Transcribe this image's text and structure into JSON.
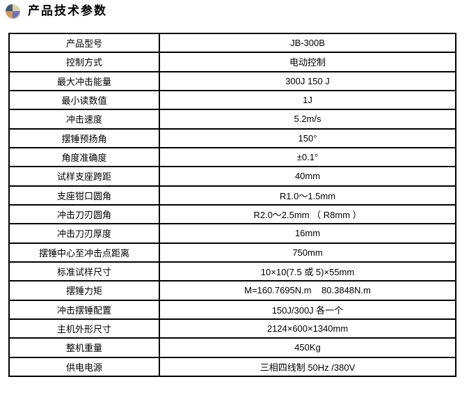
{
  "header": {
    "title": "产品技术参数",
    "icon": "pie-chart-icon",
    "icon_colors": {
      "top_left": "#475972",
      "top_right": "#d8d2a5",
      "bottom_left": "#d09a5e",
      "bottom_right": "#6d74b4"
    }
  },
  "table": {
    "rows": [
      {
        "label": "产品型号",
        "value": "JB-300B"
      },
      {
        "label": "控制方式",
        "value": "电动控制"
      },
      {
        "label": "最大冲击能量",
        "value": "300J 150 J"
      },
      {
        "label": "最小读数值",
        "value": "1J"
      },
      {
        "label": "冲击速度",
        "value": "5.2m/s"
      },
      {
        "label": "摆锤预扬角",
        "value": "150°"
      },
      {
        "label": "角度准确度",
        "value": "±0.1°"
      },
      {
        "label": "试样支座跨距",
        "value": "40mm"
      },
      {
        "label": "支座钳口圆角",
        "value": "R1.0～1.5mm"
      },
      {
        "label": "冲击刀刃圆角",
        "value": "R2.0～2.5mm （ R8mm ）"
      },
      {
        "label": "冲击刀刃厚度",
        "value": "16mm"
      },
      {
        "label": "摆锤中心至冲击点距离",
        "value": "750mm"
      },
      {
        "label": "标准试样尺寸",
        "value": "10×10(7.5 或 5)×55mm"
      },
      {
        "label": "摆锤力矩",
        "value": "M=160.7695N.m    80.3848N.m"
      },
      {
        "label": "冲击摆锤配置",
        "value": "150J/300J 各一个"
      },
      {
        "label": "主机外形尺寸",
        "value": "2124×600×1340mm"
      },
      {
        "label": "整机重量",
        "value": "450Kg"
      },
      {
        "label": "供电电源",
        "value": "三相四线制 50Hz /380V"
      }
    ]
  },
  "colors": {
    "border": "#000000",
    "text": "#000000",
    "background": "#ffffff"
  }
}
